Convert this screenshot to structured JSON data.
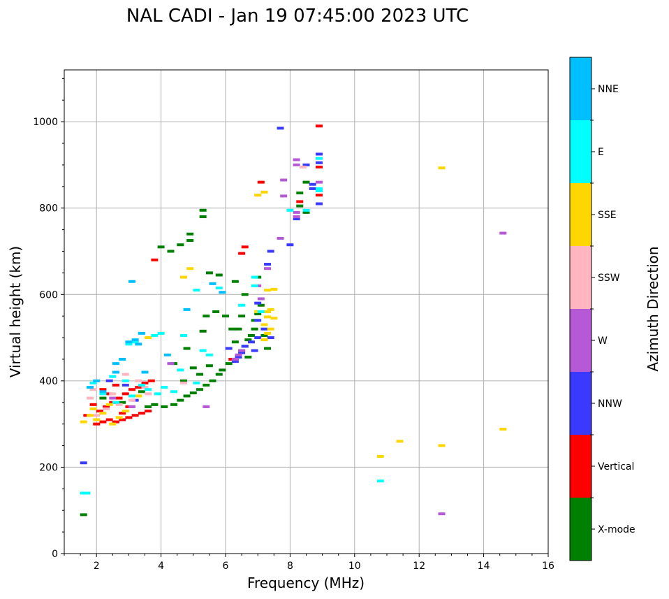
{
  "chart_data": {
    "type": "scatter",
    "title": "NAL CADI - Jan 19 07:45:00 2023 UTC",
    "xlabel": "Frequency (MHz)",
    "ylabel": "Virtual height (km)",
    "xlim": [
      1,
      16
    ],
    "ylim": [
      0,
      1120
    ],
    "x_ticks": [
      2,
      4,
      6,
      8,
      10,
      12,
      14,
      16
    ],
    "y_ticks": [
      0,
      200,
      400,
      600,
      800,
      1000
    ],
    "grid": true,
    "colorbar": {
      "label": "Azimuth Direction",
      "categories": [
        {
          "name": "X-mode",
          "color": "#008000"
        },
        {
          "name": "Vertical",
          "color": "#ff0000"
        },
        {
          "name": "NNW",
          "color": "#3a3aff"
        },
        {
          "name": "W",
          "color": "#b659d6"
        },
        {
          "name": "SSW",
          "color": "#ffb6c1"
        },
        {
          "name": "SSE",
          "color": "#ffd700"
        },
        {
          "name": "E",
          "color": "#00ffff"
        },
        {
          "name": "NNE",
          "color": "#00bfff"
        }
      ]
    },
    "series": [
      {
        "name": "X-mode",
        "points": [
          [
            4.1,
            340
          ],
          [
            4.4,
            345
          ],
          [
            4.6,
            355
          ],
          [
            4.8,
            365
          ],
          [
            5.0,
            372
          ],
          [
            5.2,
            380
          ],
          [
            5.4,
            390
          ],
          [
            5.6,
            400
          ],
          [
            5.8,
            415
          ],
          [
            5.9,
            425
          ],
          [
            6.1,
            440
          ],
          [
            6.3,
            450
          ],
          [
            6.5,
            470
          ],
          [
            6.6,
            480
          ],
          [
            6.7,
            495
          ],
          [
            6.8,
            505
          ],
          [
            6.9,
            520
          ],
          [
            6.9,
            540
          ],
          [
            7.0,
            555
          ],
          [
            7.1,
            575
          ],
          [
            6.3,
            490
          ],
          [
            6.2,
            520
          ],
          [
            6.5,
            550
          ],
          [
            6.6,
            600
          ],
          [
            6.3,
            630
          ],
          [
            5.5,
            650
          ],
          [
            5.3,
            780
          ],
          [
            5.3,
            795
          ],
          [
            4.9,
            740
          ],
          [
            4.9,
            725
          ],
          [
            4.0,
            710
          ],
          [
            4.3,
            700
          ],
          [
            4.6,
            715
          ],
          [
            5.8,
            645
          ],
          [
            5.0,
            430
          ],
          [
            5.2,
            415
          ],
          [
            5.5,
            435
          ],
          [
            4.7,
            400
          ],
          [
            4.4,
            440
          ],
          [
            5.4,
            550
          ],
          [
            5.7,
            560
          ],
          [
            7.3,
            475
          ],
          [
            7.2,
            505
          ],
          [
            8.3,
            835
          ],
          [
            8.3,
            805
          ],
          [
            8.5,
            790
          ],
          [
            8.5,
            860
          ],
          [
            3.8,
            345
          ],
          [
            3.6,
            340
          ],
          [
            2.2,
            360
          ],
          [
            2.8,
            350
          ],
          [
            3.4,
            375
          ],
          [
            1.6,
            90
          ],
          [
            7.0,
            640
          ],
          [
            6.0,
            550
          ],
          [
            6.4,
            520
          ],
          [
            5.3,
            515
          ],
          [
            4.8,
            475
          ],
          [
            6.7,
            455
          ]
        ]
      },
      {
        "name": "Vertical",
        "points": [
          [
            2.0,
            300
          ],
          [
            2.2,
            305
          ],
          [
            2.4,
            310
          ],
          [
            2.6,
            305
          ],
          [
            2.8,
            310
          ],
          [
            3.0,
            315
          ],
          [
            3.2,
            320
          ],
          [
            3.4,
            325
          ],
          [
            3.6,
            330
          ],
          [
            2.1,
            330
          ],
          [
            2.3,
            340
          ],
          [
            2.5,
            350
          ],
          [
            2.7,
            360
          ],
          [
            2.9,
            370
          ],
          [
            3.1,
            380
          ],
          [
            3.3,
            385
          ],
          [
            3.5,
            395
          ],
          [
            3.7,
            400
          ],
          [
            1.7,
            320
          ],
          [
            1.9,
            345
          ],
          [
            2.4,
            370
          ],
          [
            2.6,
            390
          ],
          [
            8.9,
            990
          ],
          [
            8.9,
            895
          ],
          [
            8.9,
            830
          ],
          [
            8.3,
            815
          ],
          [
            6.6,
            710
          ],
          [
            6.5,
            695
          ],
          [
            3.8,
            680
          ],
          [
            6.2,
            450
          ],
          [
            7.1,
            860
          ],
          [
            3.0,
            340
          ],
          [
            2.8,
            325
          ],
          [
            2.2,
            380
          ]
        ]
      },
      {
        "name": "NNW",
        "points": [
          [
            7.7,
            985
          ],
          [
            8.9,
            925
          ],
          [
            8.9,
            905
          ],
          [
            8.7,
            855
          ],
          [
            8.7,
            845
          ],
          [
            8.9,
            840
          ],
          [
            8.5,
            900
          ],
          [
            8.0,
            715
          ],
          [
            7.4,
            700
          ],
          [
            7.3,
            670
          ],
          [
            7.0,
            580
          ],
          [
            7.0,
            540
          ],
          [
            7.0,
            500
          ],
          [
            6.8,
            490
          ],
          [
            6.6,
            480
          ],
          [
            6.5,
            465
          ],
          [
            6.4,
            455
          ],
          [
            6.3,
            445
          ],
          [
            7.2,
            520
          ],
          [
            7.4,
            500
          ],
          [
            6.9,
            470
          ],
          [
            6.1,
            475
          ],
          [
            1.6,
            210
          ],
          [
            2.4,
            400
          ],
          [
            2.9,
            390
          ],
          [
            3.2,
            355
          ],
          [
            8.9,
            810
          ],
          [
            8.2,
            775
          ]
        ]
      },
      {
        "name": "W",
        "points": [
          [
            7.8,
            865
          ],
          [
            7.8,
            828
          ],
          [
            8.2,
            900
          ],
          [
            8.2,
            912
          ],
          [
            8.9,
            860
          ],
          [
            8.9,
            840
          ],
          [
            7.7,
            730
          ],
          [
            8.2,
            790
          ],
          [
            8.2,
            780
          ],
          [
            7.3,
            660
          ],
          [
            7.0,
            620
          ],
          [
            6.5,
            470
          ],
          [
            6.4,
            460
          ],
          [
            6.3,
            450
          ],
          [
            12.7,
            92
          ],
          [
            14.6,
            742
          ],
          [
            2.5,
            360
          ],
          [
            3.1,
            340
          ],
          [
            4.3,
            440
          ],
          [
            7.1,
            590
          ],
          [
            5.4,
            340
          ]
        ]
      },
      {
        "name": "SSW",
        "points": [
          [
            2.0,
            320
          ],
          [
            2.3,
            335
          ],
          [
            2.7,
            345
          ],
          [
            3.1,
            355
          ],
          [
            3.3,
            400
          ],
          [
            3.5,
            385
          ],
          [
            1.8,
            360
          ],
          [
            1.9,
            380
          ],
          [
            2.5,
            370
          ],
          [
            8.4,
            895
          ],
          [
            7.0,
            830
          ],
          [
            4.7,
            395
          ],
          [
            2.9,
            415
          ],
          [
            3.6,
            370
          ]
        ]
      },
      {
        "name": "SSE",
        "points": [
          [
            12.7,
            893
          ],
          [
            7.2,
            837
          ],
          [
            7.0,
            830
          ],
          [
            4.9,
            660
          ],
          [
            7.5,
            612
          ],
          [
            7.3,
            610
          ],
          [
            7.4,
            565
          ],
          [
            7.3,
            548
          ],
          [
            7.5,
            545
          ],
          [
            7.2,
            530
          ],
          [
            7.4,
            520
          ],
          [
            7.3,
            510
          ],
          [
            7.2,
            495
          ],
          [
            7.3,
            560
          ],
          [
            7.0,
            560
          ],
          [
            4.7,
            640
          ],
          [
            4.0,
            510
          ],
          [
            3.6,
            500
          ],
          [
            14.6,
            288
          ],
          [
            12.7,
            250
          ],
          [
            11.4,
            260
          ],
          [
            10.8,
            225
          ],
          [
            1.8,
            320
          ],
          [
            2.0,
            310
          ],
          [
            2.2,
            325
          ],
          [
            2.5,
            300
          ],
          [
            2.7,
            315
          ],
          [
            1.9,
            335
          ],
          [
            2.4,
            345
          ],
          [
            2.9,
            330
          ],
          [
            3.3,
            365
          ],
          [
            1.6,
            305
          ]
        ]
      },
      {
        "name": "E",
        "points": [
          [
            8.9,
            845
          ],
          [
            8.9,
            840
          ],
          [
            8.9,
            915
          ],
          [
            8.5,
            795
          ],
          [
            8.0,
            795
          ],
          [
            6.9,
            640
          ],
          [
            6.9,
            620
          ],
          [
            6.5,
            575
          ],
          [
            7.1,
            560
          ],
          [
            5.8,
            615
          ],
          [
            5.1,
            610
          ],
          [
            4.7,
            505
          ],
          [
            4.0,
            510
          ],
          [
            3.8,
            505
          ],
          [
            3.2,
            490
          ],
          [
            3.0,
            485
          ],
          [
            2.5,
            410
          ],
          [
            2.9,
            400
          ],
          [
            3.4,
            390
          ],
          [
            3.6,
            380
          ],
          [
            3.9,
            370
          ],
          [
            4.1,
            385
          ],
          [
            4.4,
            375
          ],
          [
            4.6,
            425
          ],
          [
            5.3,
            470
          ],
          [
            5.5,
            460
          ],
          [
            5.1,
            395
          ],
          [
            10.8,
            168
          ],
          [
            1.6,
            140
          ],
          [
            1.7,
            140
          ],
          [
            1.9,
            395
          ],
          [
            2.2,
            370
          ],
          [
            2.6,
            350
          ],
          [
            3.1,
            365
          ]
        ]
      },
      {
        "name": "NNE",
        "points": [
          [
            3.2,
            495
          ],
          [
            3.3,
            485
          ],
          [
            3.0,
            490
          ],
          [
            3.4,
            510
          ],
          [
            2.6,
            440
          ],
          [
            2.8,
            450
          ],
          [
            2.0,
            400
          ],
          [
            1.8,
            385
          ],
          [
            2.2,
            375
          ],
          [
            4.8,
            565
          ],
          [
            5.6,
            625
          ],
          [
            5.9,
            605
          ],
          [
            3.1,
            630
          ],
          [
            4.2,
            460
          ],
          [
            2.6,
            420
          ],
          [
            3.5,
            420
          ]
        ]
      }
    ]
  }
}
